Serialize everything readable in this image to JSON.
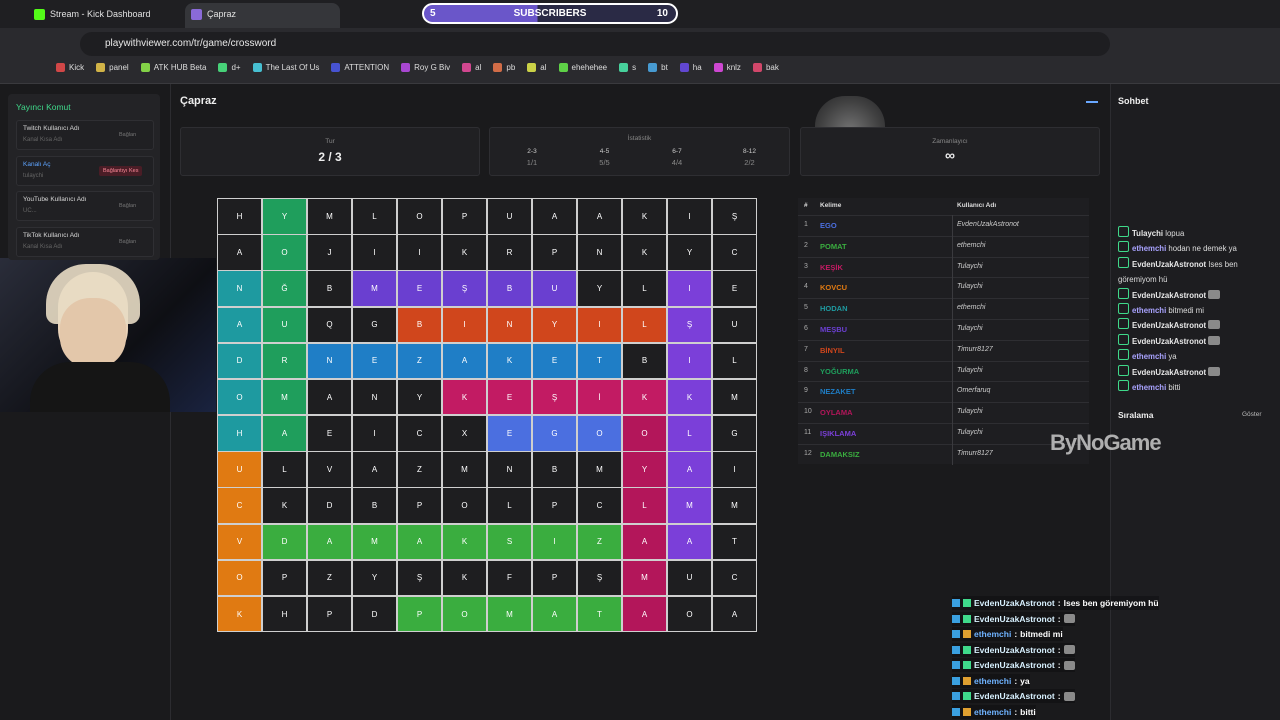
{
  "browser": {
    "tabs": [
      "Stream - Kick Dashboard",
      "Çapraz"
    ],
    "url": "playwithviewer.com/tr/game/crossword",
    "bookmarks": [
      "Kick",
      "panel",
      "ATK HUB Beta",
      "d+",
      "The Last Of Us",
      "ATTENTION",
      "Roy G Biv",
      "al",
      "pb",
      "al",
      "ehehehee",
      "s",
      "bt",
      "ha",
      "knlz",
      "bak"
    ]
  },
  "overlay": {
    "subscribers": {
      "current": "5",
      "label": "SUBSCRIBERS",
      "goal": "10"
    },
    "watermark": "ByNoGame"
  },
  "sidebar": {
    "title": "Yayıncı Komut",
    "items": [
      {
        "label": "Twitch Kullanıcı Adı",
        "placeholder": "Kanal Kısa Adı",
        "button": "Bağlan"
      },
      {
        "label": "Kanalı Aç",
        "placeholder": "tulaychi",
        "button": "Bağlantıyı Kes"
      },
      {
        "label": "YouTube Kullanıcı Adı",
        "placeholder": "UC...",
        "button": "Bağlan"
      },
      {
        "label": "TikTok Kullanıcı Adı",
        "placeholder": "Kanal Kısa Adı",
        "button": "Bağlan"
      }
    ]
  },
  "game": {
    "title": "Çapraz",
    "round": {
      "label": "Tur",
      "value": "2 / 3"
    },
    "stats": {
      "label": "İstatistik",
      "columns": [
        {
          "range": "2-3",
          "value": "1/1"
        },
        {
          "range": "4-5",
          "value": "5/5"
        },
        {
          "range": "6-7",
          "value": "4/4"
        },
        {
          "range": "8-12",
          "value": "2/2"
        }
      ]
    },
    "timer": {
      "label": "Zamanlayıcı",
      "value": "∞"
    },
    "grid": {
      "rows": [
        [
          "H",
          "Y",
          "M",
          "L",
          "O",
          "P",
          "U",
          "A",
          "A",
          "K",
          "I",
          "Ş"
        ],
        [
          "A",
          "O",
          "J",
          "I",
          "I",
          "K",
          "R",
          "P",
          "N",
          "K",
          "Y",
          "C"
        ],
        [
          "N",
          "Ğ",
          "B",
          "M",
          "E",
          "Ş",
          "B",
          "U",
          "Y",
          "L",
          "I",
          "E"
        ],
        [
          "A",
          "U",
          "Q",
          "G",
          "B",
          "I",
          "N",
          "Y",
          "I",
          "L",
          "Ş",
          "U"
        ],
        [
          "D",
          "R",
          "N",
          "E",
          "Z",
          "A",
          "K",
          "E",
          "T",
          "B",
          "I",
          "L"
        ],
        [
          "O",
          "M",
          "A",
          "N",
          "Y",
          "K",
          "E",
          "Ş",
          "İ",
          "K",
          "K",
          "M"
        ],
        [
          "H",
          "A",
          "E",
          "I",
          "C",
          "X",
          "E",
          "G",
          "O",
          "O",
          "L",
          "G"
        ],
        [
          "U",
          "L",
          "V",
          "A",
          "Z",
          "M",
          "N",
          "B",
          "M",
          "Y",
          "A",
          "I"
        ],
        [
          "C",
          "K",
          "D",
          "B",
          "P",
          "O",
          "L",
          "P",
          "C",
          "L",
          "M",
          "M"
        ],
        [
          "V",
          "D",
          "A",
          "M",
          "A",
          "K",
          "S",
          "I",
          "Z",
          "A",
          "A",
          "T"
        ],
        [
          "O",
          "P",
          "Z",
          "Y",
          "Ş",
          "K",
          "F",
          "P",
          "Ş",
          "M",
          "U",
          "C"
        ],
        [
          "K",
          "H",
          "P",
          "D",
          "P",
          "O",
          "M",
          "A",
          "T",
          "A",
          "O",
          "A"
        ]
      ],
      "colors": [
        [
          null,
          "#1f9e5c",
          null,
          null,
          null,
          null,
          null,
          null,
          null,
          null,
          null,
          null
        ],
        [
          null,
          "#1f9e5c",
          null,
          null,
          null,
          null,
          null,
          null,
          null,
          null,
          null,
          null
        ],
        [
          "#1e9aa0",
          "#1f9e5c",
          null,
          "#6a3fd0",
          "#6a3fd0",
          "#6a3fd0",
          "#6a3fd0",
          "#6a3fd0",
          null,
          null,
          "#7b3fd9",
          null
        ],
        [
          "#1e9aa0",
          "#1f9e5c",
          null,
          null,
          "#d0461c",
          "#d0461c",
          "#d0461c",
          "#d0461c",
          "#d0461c",
          "#d0461c",
          "#7b3fd9",
          null
        ],
        [
          "#1e9aa0",
          "#1f9e5c",
          "#1f7ec6",
          "#1f7ec6",
          "#1f7ec6",
          "#1f7ec6",
          "#1f7ec6",
          "#1f7ec6",
          "#1f7ec6",
          null,
          "#7b3fd9",
          null
        ],
        [
          "#1e9aa0",
          "#1f9e5c",
          null,
          null,
          null,
          "#c21b63",
          "#c21b63",
          "#c21b63",
          "#c21b63",
          "#c21b63",
          "#7b3fd9",
          null
        ],
        [
          "#1e9aa0",
          "#1f9e5c",
          null,
          null,
          null,
          null,
          "#4b6fe0",
          "#4b6fe0",
          "#4b6fe0",
          "#b3165a",
          "#7b3fd9",
          null
        ],
        [
          "#e07a12",
          null,
          null,
          null,
          null,
          null,
          null,
          null,
          null,
          "#b3165a",
          "#7b3fd9",
          null
        ],
        [
          "#e07a12",
          null,
          null,
          null,
          null,
          null,
          null,
          null,
          null,
          "#b3165a",
          "#7b3fd9",
          null
        ],
        [
          "#e07a12",
          "#3aad3f",
          "#3aad3f",
          "#3aad3f",
          "#3aad3f",
          "#3aad3f",
          "#3aad3f",
          "#3aad3f",
          "#3aad3f",
          "#b3165a",
          "#7b3fd9",
          null
        ],
        [
          "#e07a12",
          null,
          null,
          null,
          null,
          null,
          null,
          null,
          null,
          "#b3165a",
          null,
          null
        ],
        [
          "#e07a12",
          null,
          null,
          null,
          "#3aad3f",
          "#3aad3f",
          "#3aad3f",
          "#3aad3f",
          "#3aad3f",
          "#b3165a",
          null,
          null
        ]
      ]
    },
    "words": {
      "headers": [
        "#",
        "Kelime",
        "Kullanıcı Adı"
      ],
      "rows": [
        {
          "n": "1",
          "word": "EGO",
          "user": "EvdenUzakAstronot",
          "color": "#4b6fe0"
        },
        {
          "n": "2",
          "word": "POMAT",
          "user": "ethemchi",
          "color": "#3aad3f"
        },
        {
          "n": "3",
          "word": "KEŞİK",
          "user": "Tulaychi",
          "color": "#c21b63"
        },
        {
          "n": "4",
          "word": "KOVCU",
          "user": "Tulaychi",
          "color": "#e07a12"
        },
        {
          "n": "5",
          "word": "HODAN",
          "user": "ethemchi",
          "color": "#1e9aa0"
        },
        {
          "n": "6",
          "word": "MEŞBU",
          "user": "Tulaychi",
          "color": "#6a3fd0"
        },
        {
          "n": "7",
          "word": "BİNYIL",
          "user": "Timurr8127",
          "color": "#d0461c"
        },
        {
          "n": "8",
          "word": "YOĞURMA",
          "user": "Tulaychi",
          "color": "#1f9e5c"
        },
        {
          "n": "9",
          "word": "NEZAKET",
          "user": "Omerfaruq",
          "color": "#1f7ec6"
        },
        {
          "n": "10",
          "word": "OYLAMA",
          "user": "Tulaychi",
          "color": "#b3165a"
        },
        {
          "n": "11",
          "word": "IŞIKLAMA",
          "user": "Tulaychi",
          "color": "#7b3fd9"
        },
        {
          "n": "12",
          "word": "DAMAKSIZ",
          "user": "Timurr8127",
          "color": "#3aad3f"
        }
      ]
    }
  },
  "chat": {
    "title": "Sohbet",
    "messages": [
      {
        "user": "Tulaychi",
        "color": "#e8e8e8",
        "text": "lopua"
      },
      {
        "user": "ethemchi",
        "color": "#a9a3ff",
        "text": "hodan ne demek ya"
      },
      {
        "user": "EvdenUzakAstronot",
        "color": "#e8e8e8",
        "text": "Ises ben göremiyom hü"
      },
      {
        "user": "EvdenUzakAstronot",
        "color": "#e8e8e8"
      },
      {
        "user": "ethemchi",
        "color": "#a9a3ff",
        "text": "bitmedi mi"
      },
      {
        "user": "EvdenUzakAstronot",
        "color": "#e8e8e8"
      },
      {
        "user": "EvdenUzakAstronot",
        "color": "#e8e8e8"
      },
      {
        "user": "ethemchi",
        "color": "#a9a3ff",
        "text": "ya"
      },
      {
        "user": "EvdenUzakAstronot",
        "color": "#e8e8e8"
      },
      {
        "user": "ethemchi",
        "color": "#a9a3ff",
        "text": "bitti"
      }
    ],
    "ranking": {
      "title": "Sıralama",
      "button": "Göster"
    }
  },
  "overlay_chat": {
    "separator": ":",
    "messages": [
      {
        "user": "EvdenUzakAstronot",
        "color": "#d8f1ff",
        "text": "Ises ben göremiyom hü"
      },
      {
        "user": "EvdenUzakAstronot",
        "color": "#d8f1ff"
      },
      {
        "user": "ethemchi",
        "color": "#6fb3ff",
        "text": "bitmedi mi"
      },
      {
        "user": "EvdenUzakAstronot",
        "color": "#d8f1ff"
      },
      {
        "user": "EvdenUzakAstronot",
        "color": "#d8f1ff"
      },
      {
        "user": "ethemchi",
        "color": "#6fb3ff",
        "text": "ya"
      },
      {
        "user": "EvdenUzakAstronot",
        "color": "#d8f1ff"
      },
      {
        "user": "ethemchi",
        "color": "#6fb3ff",
        "text": "bitti"
      }
    ]
  }
}
